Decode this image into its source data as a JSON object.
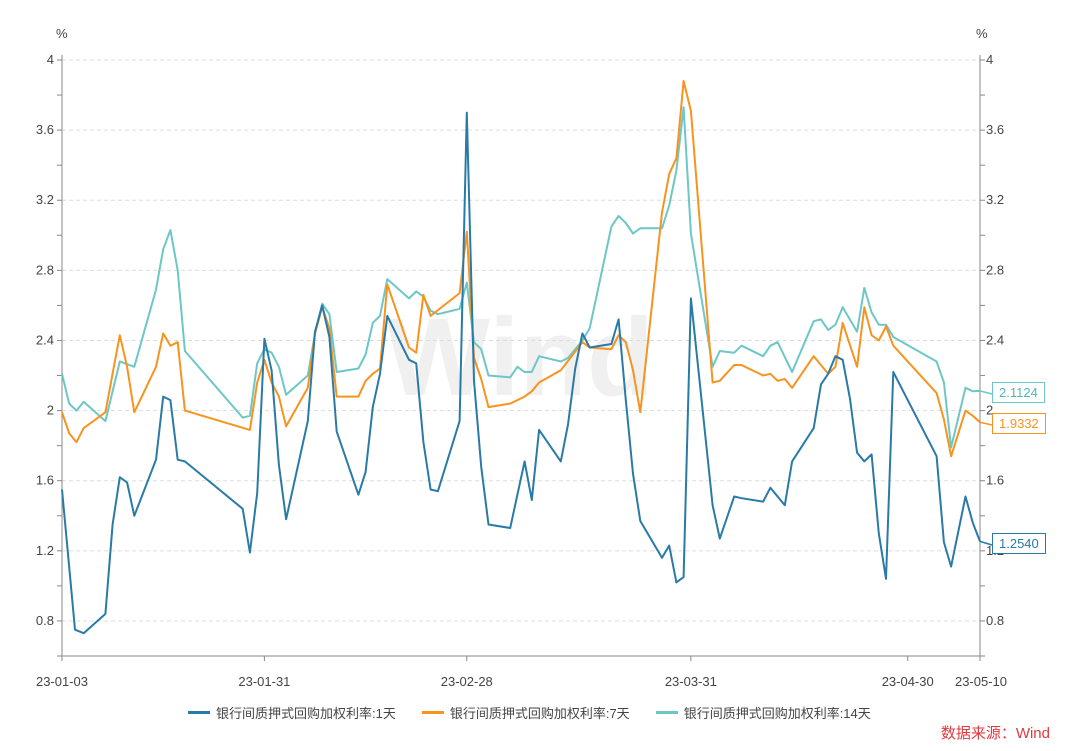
{
  "chart_data": {
    "type": "line",
    "title": "",
    "unit_left": "%",
    "unit_right": "%",
    "x_unit": "days since 23-01-03",
    "xlim": [
      0,
      127
    ],
    "ylim": [
      0.6,
      4.0
    ],
    "y_ticks": [
      0.8,
      1.2,
      1.6,
      2.0,
      2.4,
      2.8,
      3.2,
      3.6,
      4.0
    ],
    "y_tick_labels": [
      "0.8",
      "1.2",
      "1.6",
      "2",
      "2.4",
      "2.8",
      "3.2",
      "3.6",
      "4"
    ],
    "x_ticks": [
      0,
      28,
      56,
      87,
      117,
      127
    ],
    "x_tick_labels": [
      "23-01-03",
      "23-01-31",
      "23-02-28",
      "23-03-31",
      "23-04-30",
      "23-05-10"
    ],
    "grid": true,
    "legend_position": "bottom",
    "watermark": "Wind",
    "series": [
      {
        "name": "银行间质押式回购加权利率:1天",
        "color": "#2a7aa8",
        "last_label": "1.2540",
        "x": [
          0,
          1.8,
          3,
          6,
          7,
          8,
          9,
          10,
          13,
          14,
          15,
          16,
          17,
          25,
          26,
          27,
          28,
          29,
          30,
          31,
          34,
          35,
          36,
          37,
          38,
          41,
          42,
          43,
          44,
          45,
          48,
          49,
          50,
          51,
          52,
          55,
          56,
          57,
          58,
          59,
          62,
          64,
          65,
          66,
          69,
          70,
          71,
          72,
          73,
          76,
          77,
          78,
          79,
          80,
          83,
          84,
          85,
          86,
          87,
          90,
          91,
          93,
          94,
          97,
          98,
          100,
          101,
          104,
          105,
          106,
          107,
          108,
          109,
          110,
          111,
          112,
          113,
          114,
          115,
          121,
          122,
          123,
          125,
          126,
          127
        ],
        "y": [
          1.55,
          0.75,
          0.73,
          0.84,
          1.35,
          1.62,
          1.59,
          1.4,
          1.72,
          2.08,
          2.06,
          1.72,
          1.71,
          1.44,
          1.19,
          1.53,
          2.41,
          2.23,
          1.69,
          1.38,
          1.94,
          2.45,
          2.6,
          2.42,
          1.88,
          1.52,
          1.65,
          2.02,
          2.21,
          2.54,
          2.29,
          2.27,
          1.82,
          1.55,
          1.54,
          1.94,
          3.7,
          2.17,
          1.68,
          1.35,
          1.33,
          1.71,
          1.49,
          1.89,
          1.71,
          1.92,
          2.24,
          2.44,
          2.36,
          2.38,
          2.52,
          2.06,
          1.64,
          1.37,
          1.16,
          1.23,
          1.02,
          1.05,
          2.64,
          1.46,
          1.27,
          1.51,
          1.5,
          1.48,
          1.56,
          1.46,
          1.71,
          1.9,
          2.15,
          2.21,
          2.31,
          2.29,
          2.07,
          1.76,
          1.71,
          1.75,
          1.3,
          1.04,
          2.22,
          1.74,
          1.25,
          1.11,
          1.51,
          1.36,
          1.254
        ]
      },
      {
        "name": "银行间质押式回购加权利率:7天",
        "color": "#f7931e",
        "last_label": "1.9332",
        "x": [
          0,
          1,
          2,
          3,
          6,
          8,
          9,
          10,
          13,
          14,
          15,
          16,
          17,
          26,
          27,
          28,
          29,
          30,
          31,
          34,
          35,
          36,
          37,
          38,
          41,
          42,
          43,
          44,
          45,
          48,
          49,
          50,
          51,
          55,
          56,
          57,
          58,
          59,
          62,
          64,
          65,
          66,
          69,
          72,
          73,
          76,
          77,
          78,
          79,
          80,
          83,
          84,
          85,
          86,
          87,
          90,
          91,
          93,
          94,
          97,
          98,
          99,
          100,
          101,
          104,
          106,
          107,
          108,
          110,
          111,
          112,
          113,
          114,
          115,
          121,
          122,
          123,
          125,
          126,
          127
        ],
        "y": [
          1.99,
          1.87,
          1.82,
          1.9,
          1.99,
          2.43,
          2.25,
          1.99,
          2.25,
          2.44,
          2.37,
          2.39,
          2.0,
          1.89,
          2.16,
          2.29,
          2.16,
          2.08,
          1.91,
          2.13,
          2.44,
          2.59,
          2.47,
          2.08,
          2.08,
          2.17,
          2.21,
          2.24,
          2.72,
          2.36,
          2.33,
          2.66,
          2.54,
          2.67,
          3.02,
          2.3,
          2.18,
          2.02,
          2.04,
          2.08,
          2.11,
          2.16,
          2.23,
          2.39,
          2.36,
          2.35,
          2.43,
          2.39,
          2.23,
          1.99,
          3.13,
          3.35,
          3.44,
          3.88,
          3.71,
          2.16,
          2.17,
          2.26,
          2.26,
          2.2,
          2.21,
          2.17,
          2.18,
          2.13,
          2.31,
          2.21,
          2.25,
          2.5,
          2.25,
          2.59,
          2.43,
          2.4,
          2.48,
          2.37,
          2.1,
          1.95,
          1.74,
          2.0,
          1.97,
          1.9332
        ]
      },
      {
        "name": "银行间质押式回购加权利率:14天",
        "color": "#6cc7c6",
        "last_label": "2.1124",
        "x": [
          0,
          1,
          2,
          3,
          6,
          8,
          10,
          13,
          14,
          15,
          16,
          17,
          25,
          26,
          27,
          28,
          29,
          30,
          31,
          34,
          35,
          36,
          37,
          38,
          41,
          42,
          43,
          44,
          45,
          48,
          49,
          50,
          51,
          52,
          55,
          56,
          57,
          58,
          59,
          62,
          63,
          64,
          65,
          66,
          69,
          70,
          72,
          73,
          76,
          77,
          78,
          79,
          80,
          83,
          84,
          85,
          86,
          87,
          90,
          91,
          93,
          94,
          97,
          98,
          99,
          101,
          104,
          105,
          106,
          107,
          108,
          110,
          111,
          112,
          113,
          114,
          115,
          121,
          122,
          123,
          125,
          126,
          127
        ],
        "y": [
          2.21,
          2.04,
          2.0,
          2.05,
          1.94,
          2.28,
          2.25,
          2.69,
          2.92,
          3.03,
          2.8,
          2.34,
          1.96,
          1.97,
          2.27,
          2.35,
          2.33,
          2.25,
          2.09,
          2.2,
          2.44,
          2.61,
          2.55,
          2.22,
          2.24,
          2.32,
          2.5,
          2.54,
          2.75,
          2.64,
          2.68,
          2.65,
          2.57,
          2.55,
          2.58,
          2.73,
          2.39,
          2.35,
          2.2,
          2.19,
          2.25,
          2.22,
          2.22,
          2.31,
          2.28,
          2.3,
          2.4,
          2.47,
          3.05,
          3.11,
          3.07,
          3.01,
          3.04,
          3.04,
          3.17,
          3.37,
          3.73,
          3.01,
          2.25,
          2.34,
          2.33,
          2.37,
          2.31,
          2.37,
          2.39,
          2.22,
          2.51,
          2.52,
          2.46,
          2.49,
          2.59,
          2.45,
          2.7,
          2.56,
          2.49,
          2.49,
          2.42,
          2.28,
          2.16,
          1.79,
          2.13,
          2.11,
          2.1124
        ]
      }
    ]
  },
  "footer": {
    "source": "数据来源：Wind"
  }
}
